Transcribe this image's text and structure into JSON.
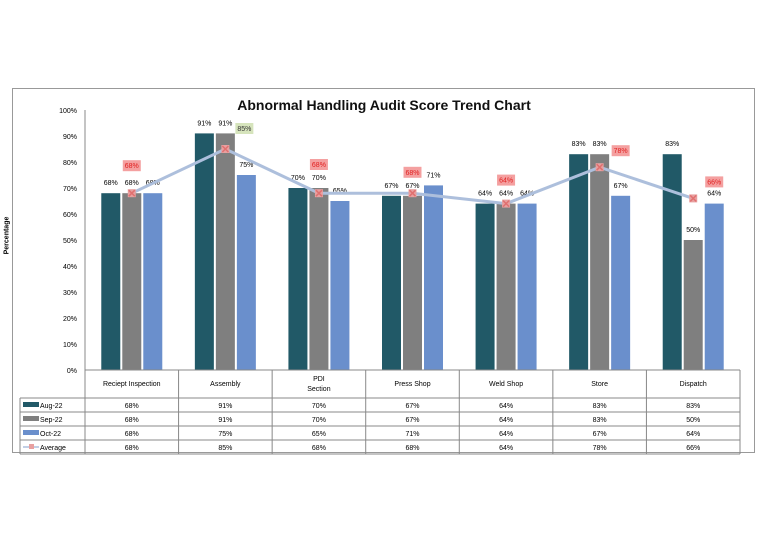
{
  "chart_data": {
    "type": "bar",
    "title": "Abnormal Handling Audit Score Trend Chart",
    "ylabel": "Percentage",
    "ylim": [
      0,
      100
    ],
    "yticks": [
      "0%",
      "10%",
      "20%",
      "30%",
      "40%",
      "50%",
      "60%",
      "70%",
      "80%",
      "90%",
      "100%"
    ],
    "categories": [
      "Reciept Inspection",
      "Assembly",
      "PDI Section",
      "Press Shop",
      "Weld Shop",
      "Store",
      "Dispatch"
    ],
    "series": [
      {
        "name": "Aug-22",
        "color": "#215967",
        "values": [
          68,
          91,
          70,
          67,
          64,
          83,
          83
        ]
      },
      {
        "name": "Sep-22",
        "color": "#7f7f7f",
        "values": [
          68,
          91,
          70,
          67,
          64,
          83,
          50
        ]
      },
      {
        "name": "Oct-22",
        "color": "#6a8fcc",
        "values": [
          68,
          75,
          65,
          71,
          64,
          67,
          64
        ]
      },
      {
        "name": "Average",
        "type": "line",
        "color": "#adbfdc",
        "marker_color": "#e07070",
        "values": [
          68,
          85,
          68,
          68,
          64,
          78,
          66
        ]
      }
    ],
    "average_label_highlight": [
      "#f4a0a0",
      "#d6e4bc",
      "#f4a0a0",
      "#f4a0a0",
      "#f4a0a0",
      "#f4a0a0",
      "#f4a0a0"
    ],
    "data_table": true,
    "grid": false
  }
}
